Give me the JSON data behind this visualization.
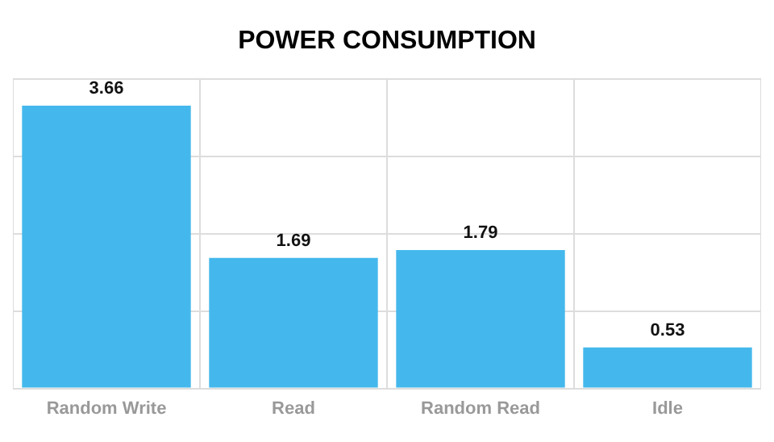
{
  "chart_data": {
    "type": "bar",
    "title": "POWER CONSUMPTION",
    "categories": [
      "Random Write",
      "Read",
      "Random Read",
      "Idle"
    ],
    "series": [
      {
        "color": "#44b8ec",
        "values": [
          3.66,
          1.69,
          1.79,
          0.53
        ]
      }
    ],
    "data_labels": true,
    "grid": true,
    "tick_labels": "x",
    "legend": false
  }
}
